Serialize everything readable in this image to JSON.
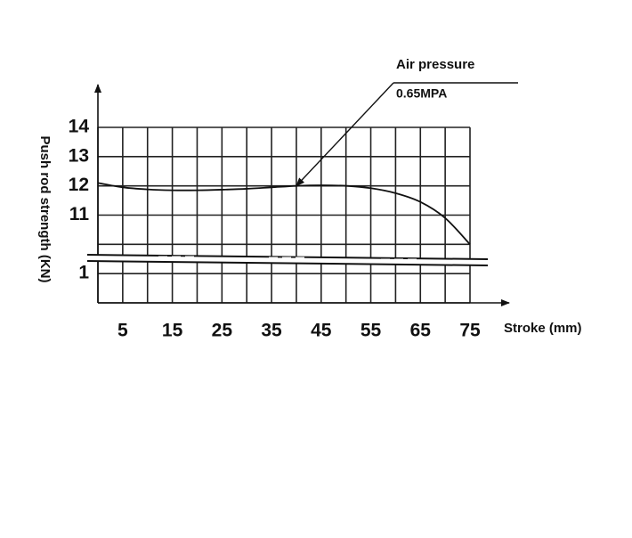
{
  "chart_data": {
    "type": "line",
    "x_axis_label": "Stroke (mm)",
    "y_axis_label": "Push rod strength (KN)",
    "annotation": {
      "line1": "Air pressure",
      "line2": "0.65MPA",
      "x": 40,
      "y": 12
    },
    "xlim": [
      0,
      75
    ],
    "xticks": [
      5,
      15,
      25,
      35,
      45,
      55,
      65,
      75
    ],
    "x_minor_ticks": [
      0,
      10,
      20,
      30,
      40,
      50,
      60,
      70
    ],
    "ylim": [
      0,
      14
    ],
    "ybreak": [
      1,
      10
    ],
    "yticks": [
      1,
      11,
      12,
      13,
      14
    ],
    "y_minor_ticks": [
      0,
      10
    ],
    "grid": true,
    "series": [
      {
        "color": "#111111",
        "x": [
          0,
          5,
          10,
          15,
          20,
          25,
          30,
          35,
          40,
          45,
          50,
          55,
          60,
          65,
          70,
          75
        ],
        "values": [
          12.1,
          11.95,
          11.88,
          11.85,
          11.85,
          11.87,
          11.9,
          11.95,
          12.0,
          12.02,
          12.0,
          11.92,
          11.75,
          11.45,
          10.9,
          10.0
        ]
      }
    ]
  }
}
